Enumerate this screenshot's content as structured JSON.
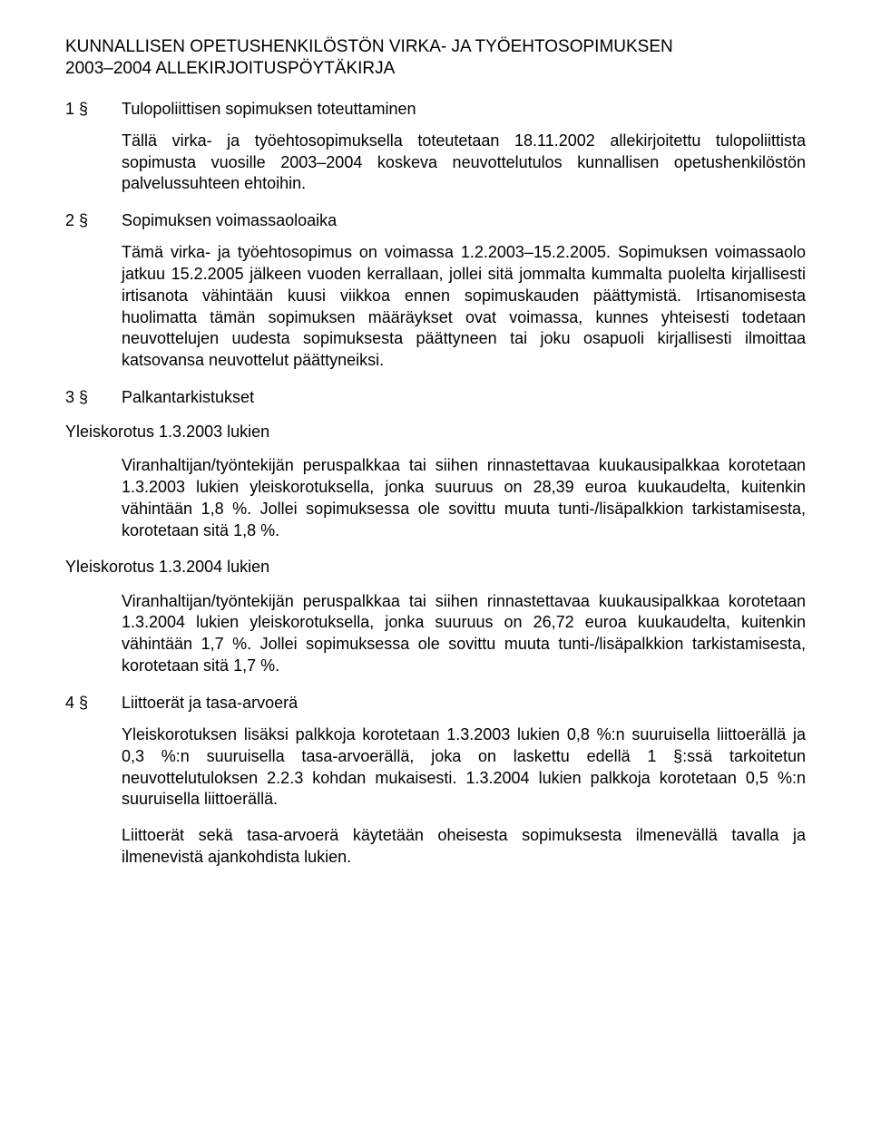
{
  "title_line1": "KUNNALLISEN OPETUSHENKILÖSTÖN VIRKA- JA TYÖEHTOSOPIMUKSEN",
  "title_line2": "2003–2004 ALLEKIRJOITUSPÖYTÄKIRJA",
  "sections": {
    "s1": {
      "num": "1 §",
      "label": "Tulopoliittisen sopimuksen toteuttaminen",
      "para": "Tällä virka- ja työehtosopimuksella toteutetaan 18.11.2002 allekirjoitettu tulopoliittista sopimusta vuosille 2003–2004 koskeva neuvottelutulos kunnallisen opetushenkilöstön palvelussuhteen ehtoihin."
    },
    "s2": {
      "num": "2 §",
      "label": "Sopimuksen voimassaoloaika",
      "para": "Tämä virka- ja työehtosopimus on voimassa 1.2.2003–15.2.2005. Sopimuksen voimassaolo jatkuu 15.2.2005 jälkeen vuoden kerrallaan, jollei sitä jommalta kummalta puolelta kirjallisesti irtisanota vähintään kuusi viikkoa ennen sopimuskauden päättymistä. Irtisanomisesta huolimatta tämän sopimuksen määräykset ovat voimassa, kunnes yhteisesti todetaan neuvottelujen uudesta sopimuksesta päättyneen tai joku osapuoli kirjallisesti ilmoittaa katsovansa neuvottelut päättyneiksi."
    },
    "s3": {
      "num": "3 §",
      "label": "Palkantarkistukset"
    },
    "yk2003": {
      "header": "Yleiskorotus 1.3.2003 lukien",
      "para": "Viranhaltijan/työntekijän peruspalkkaa tai siihen rinnastettavaa kuukausipalkkaa korotetaan 1.3.2003 lukien yleiskorotuksella, jonka suuruus on 28,39 euroa kuukaudelta, kuitenkin vähintään 1,8 %. Jollei sopimuksessa ole sovittu muuta tunti-/lisäpalkkion tarkistamisesta, korotetaan sitä 1,8 %."
    },
    "yk2004": {
      "header": "Yleiskorotus 1.3.2004 lukien",
      "para": "Viranhaltijan/työntekijän peruspalkkaa tai siihen rinnastettavaa kuukausipalkkaa korotetaan 1.3.2004 lukien yleiskorotuksella, jonka suuruus on 26,72 euroa kuukaudelta, kuitenkin vähintään 1,7 %. Jollei sopimuksessa ole sovittu muuta tunti-/lisäpalkkion tarkistamisesta, korotetaan sitä 1,7 %."
    },
    "s4": {
      "num": "4 §",
      "label": "Liittoerät ja tasa-arvoerä",
      "para1": "Yleiskorotuksen lisäksi palkkoja korotetaan 1.3.2003 lukien 0,8 %:n suuruisella liittoerällä ja 0,3 %:n suuruisella tasa-arvoerällä, joka on laskettu edellä 1 §:ssä tarkoitetun neuvottelutuloksen 2.2.3 kohdan mukaisesti. 1.3.2004 lukien palkkoja korotetaan 0,5 %:n suuruisella liittoerällä.",
      "para2": "Liittoerät sekä tasa-arvoerä käytetään oheisesta sopimuksesta ilmenevällä tavalla ja ilmenevistä ajankohdista lukien."
    }
  },
  "colors": {
    "text": "#000000",
    "background": "#ffffff"
  },
  "typography": {
    "title_fontsize_pt": 14,
    "body_fontsize_pt": 13,
    "font_family": "Arial"
  }
}
